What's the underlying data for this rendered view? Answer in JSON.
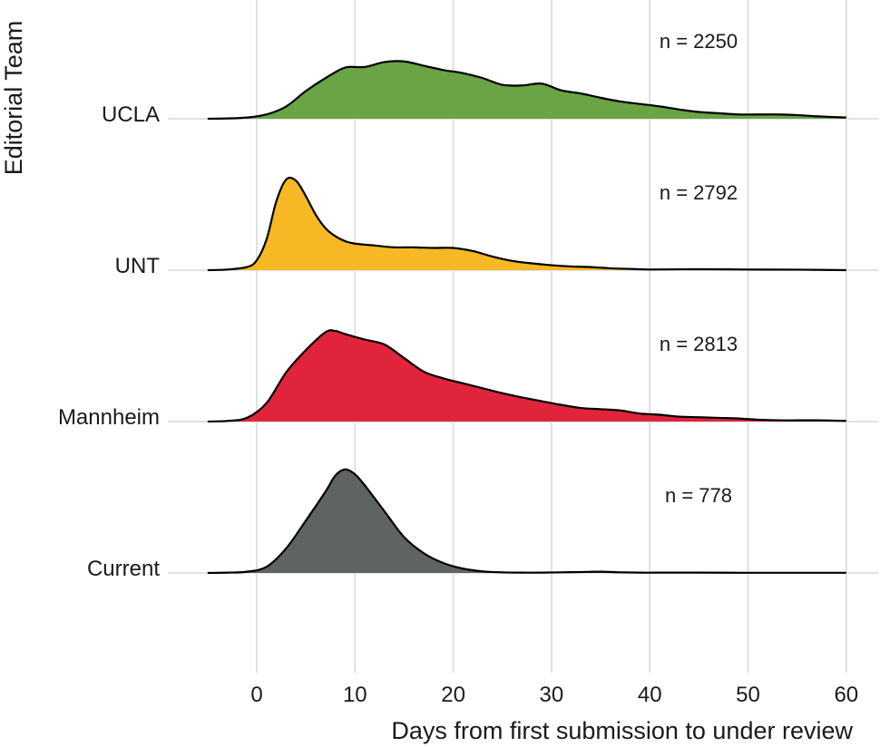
{
  "chart_data": {
    "type": "area",
    "subtype": "ridgeline",
    "xlabel": "Days from first submission to under review",
    "ylabel": "Editorial Team",
    "xlim": [
      -5,
      60
    ],
    "xticks": [
      0,
      10,
      20,
      30,
      40,
      50,
      60
    ],
    "grid": "vertical",
    "legend": "none",
    "series": [
      {
        "name": "UCLA",
        "n_label": "n =  2250",
        "color": "#6aa444",
        "x": [
          -5,
          -3,
          -1,
          1,
          3,
          5,
          7,
          9,
          11,
          13,
          15,
          17,
          19,
          21,
          23,
          25,
          27,
          29,
          31,
          33,
          35,
          37,
          39,
          41,
          43,
          45,
          47,
          49,
          51,
          53,
          55,
          57,
          60
        ],
        "density": [
          0,
          0.005,
          0.02,
          0.07,
          0.2,
          0.45,
          0.66,
          0.83,
          0.84,
          0.92,
          0.93,
          0.86,
          0.79,
          0.74,
          0.66,
          0.55,
          0.54,
          0.57,
          0.46,
          0.41,
          0.34,
          0.28,
          0.24,
          0.2,
          0.15,
          0.11,
          0.09,
          0.07,
          0.07,
          0.07,
          0.06,
          0.04,
          0.02
        ]
      },
      {
        "name": "UNT",
        "n_label": "n =  2792",
        "color": "#f7b825",
        "x": [
          -5,
          -3,
          -1,
          0,
          1,
          2,
          3,
          4,
          5,
          6,
          7,
          8,
          9,
          10,
          12,
          14,
          16,
          18,
          20,
          22,
          24,
          26,
          28,
          30,
          32,
          34,
          36,
          38,
          40,
          45,
          50,
          55,
          60
        ],
        "density": [
          0,
          0.01,
          0.05,
          0.16,
          0.5,
          1.12,
          1.47,
          1.45,
          1.2,
          0.9,
          0.68,
          0.55,
          0.47,
          0.43,
          0.4,
          0.37,
          0.37,
          0.36,
          0.36,
          0.31,
          0.22,
          0.15,
          0.11,
          0.08,
          0.06,
          0.05,
          0.03,
          0.02,
          0.01,
          0.015,
          0.01,
          0.008,
          0
        ]
      },
      {
        "name": "Mannheim",
        "n_label": "n =  2813",
        "color": "#e0243c",
        "x": [
          -5,
          -3,
          -1,
          1,
          3,
          5,
          7,
          8,
          9,
          11,
          13,
          15,
          17,
          19,
          21,
          23,
          25,
          27,
          29,
          31,
          33,
          35,
          37,
          39,
          41,
          43,
          45,
          47,
          49,
          51,
          53,
          55,
          57,
          60
        ],
        "density": [
          0,
          0.01,
          0.06,
          0.3,
          0.8,
          1.16,
          1.45,
          1.47,
          1.42,
          1.33,
          1.25,
          1.03,
          0.81,
          0.7,
          0.62,
          0.54,
          0.46,
          0.39,
          0.33,
          0.27,
          0.22,
          0.2,
          0.18,
          0.13,
          0.11,
          0.08,
          0.07,
          0.06,
          0.05,
          0.03,
          0.02,
          0.02,
          0.02,
          0.01
        ]
      },
      {
        "name": "Current",
        "n_label": "n =  778",
        "color": "#5f6363",
        "x": [
          -5,
          -3,
          -1,
          1,
          3,
          5,
          7,
          8,
          9,
          10,
          11,
          13,
          15,
          17,
          19,
          21,
          23,
          25,
          27,
          29,
          31,
          33,
          35,
          37,
          39,
          41,
          45,
          50,
          55,
          60
        ],
        "density": [
          0,
          0.005,
          0.02,
          0.1,
          0.4,
          0.85,
          1.32,
          1.58,
          1.68,
          1.6,
          1.42,
          1.0,
          0.58,
          0.32,
          0.16,
          0.07,
          0.025,
          0.01,
          0.005,
          0.005,
          0.01,
          0.015,
          0.02,
          0.01,
          0.005,
          0.005,
          0.005,
          0.003,
          0.003,
          0.003
        ]
      }
    ]
  }
}
